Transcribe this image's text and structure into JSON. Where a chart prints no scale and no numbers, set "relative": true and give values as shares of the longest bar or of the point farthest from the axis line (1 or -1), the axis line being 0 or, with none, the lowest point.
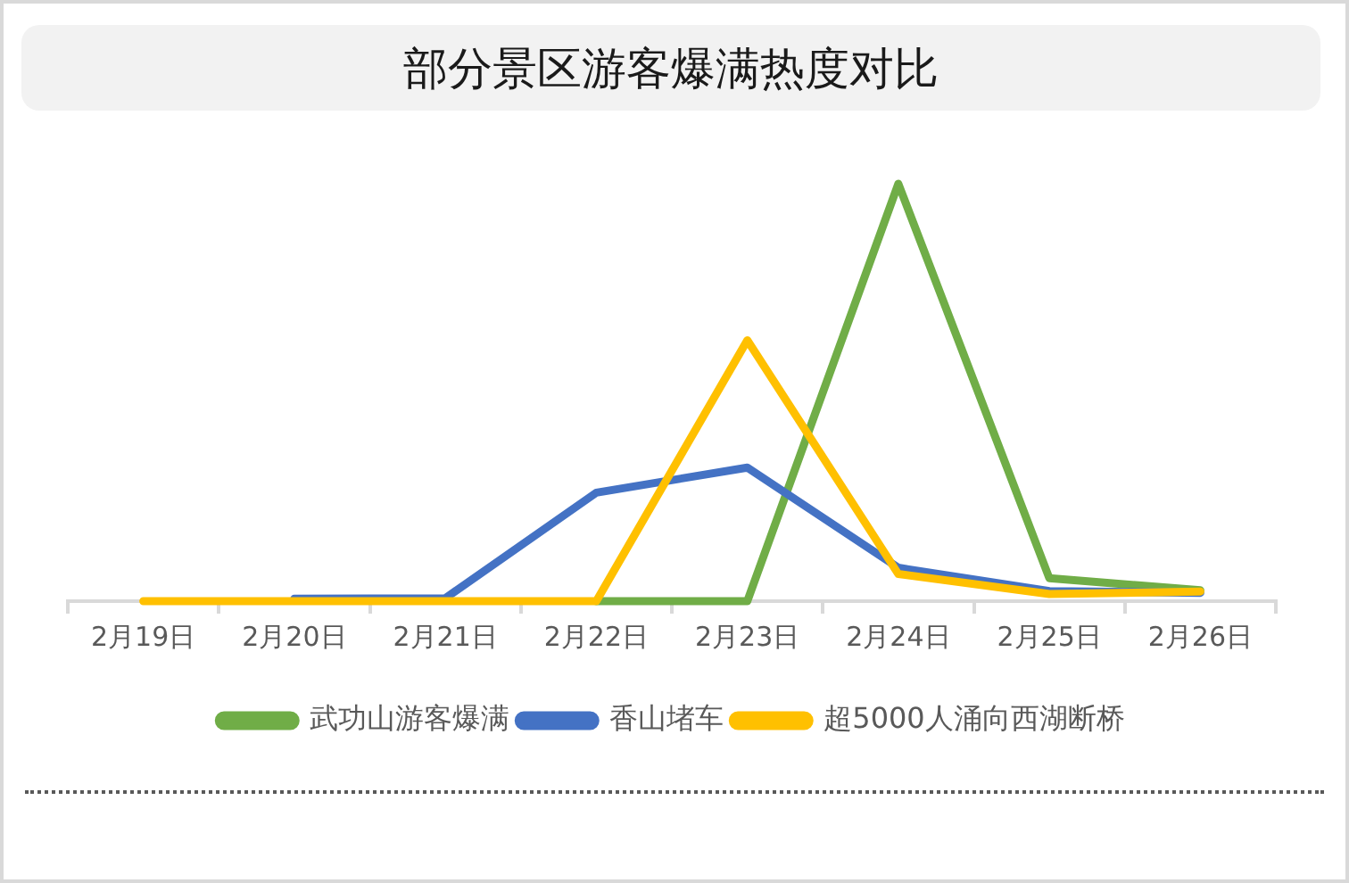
{
  "chart_data": {
    "type": "line",
    "title": "部分景区游客爆满热度对比",
    "categories": [
      "2月19日",
      "2月20日",
      "2月21日",
      "2月22日",
      "2月23日",
      "2月24日",
      "2月25日",
      "2月26日"
    ],
    "relative": true,
    "series": [
      {
        "name": "武功山游客爆满",
        "color": "#70ad47",
        "values": [
          null,
          null,
          null,
          0,
          0,
          1,
          0.055,
          0.026
        ]
      },
      {
        "name": "香山堵车",
        "color": "#4472c4",
        "values": [
          null,
          0.006,
          0.007,
          0.26,
          0.32,
          0.08,
          0.024,
          0.02
        ]
      },
      {
        "name": "超5000人涌向西湖断桥",
        "color": "#ffc000",
        "values": [
          0,
          0,
          0,
          0,
          0.625,
          0.065,
          0.017,
          0.023
        ]
      }
    ],
    "legend": "bottom",
    "marker": "none",
    "line_style": "solid",
    "grid": false
  }
}
